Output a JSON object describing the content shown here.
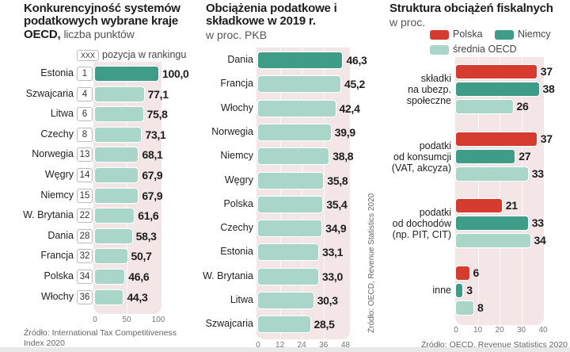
{
  "colors": {
    "teal_dark": "#3f9c86",
    "teal_light": "#a9d6c8",
    "red": "#d63b2f",
    "panel_bg": "#f4e6e6"
  },
  "chart_data": [
    {
      "type": "bar",
      "orientation": "horizontal",
      "title": "Konkurencyjność systemów podatkowych wybrane kraje OECD,",
      "subtitle": "liczba punktów",
      "legend_rank_box": "XXX",
      "legend_rank_label": "pozycja w rankingu",
      "categories": [
        "Estonia",
        "Szwajcaria",
        "Litwa",
        "Czechy",
        "Norwegia",
        "Węgry",
        "Niemcy",
        "W. Brytania",
        "Dania",
        "Francja",
        "Polska",
        "Włochy"
      ],
      "ranks": [
        "1",
        "4",
        "6",
        "8",
        "13",
        "14",
        "15",
        "22",
        "28",
        "32",
        "34",
        "36"
      ],
      "values": [
        100.0,
        77.1,
        75.8,
        73.1,
        68.1,
        67.9,
        67.9,
        61.6,
        58.3,
        50.7,
        46.6,
        44.3
      ],
      "value_labels": [
        "100,0",
        "77,1",
        "75,8",
        "73,1",
        "68,1",
        "67,9",
        "67,9",
        "61,6",
        "58,3",
        "50,7",
        "46,6",
        "44,3"
      ],
      "highlight_index": 0,
      "xlim": [
        0,
        100
      ],
      "xticks": [
        "0",
        "50",
        "100"
      ],
      "source": "Źródło: International Tax Competitiveness Index 2020"
    },
    {
      "type": "bar",
      "orientation": "horizontal",
      "title": "Obciążenia podatkowe i składkowe w 2019 r.",
      "subtitle": "w proc. PKB",
      "categories": [
        "Dania",
        "Francja",
        "Włochy",
        "Norwegia",
        "Niemcy",
        "Węgry",
        "Polska",
        "Czechy",
        "Estonia",
        "W. Brytania",
        "Litwa",
        "Szwajcaria"
      ],
      "values": [
        46.3,
        45.2,
        42.4,
        39.9,
        38.8,
        35.8,
        35.4,
        34.9,
        33.1,
        33.0,
        30.3,
        28.5
      ],
      "value_labels": [
        "46,3",
        "45,2",
        "42,4",
        "39,9",
        "38,8",
        "35,8",
        "35,4",
        "34,9",
        "33,1",
        "33,0",
        "30,3",
        "28,5"
      ],
      "highlight_index": 0,
      "xlim": [
        0,
        48
      ],
      "xticks": [
        "0",
        "12",
        "24",
        "36",
        "48"
      ],
      "source": "Źródło: OECD, Revenue Statistics 2020"
    },
    {
      "type": "bar",
      "orientation": "horizontal",
      "title": "Struktura obciążeń fiskalnych",
      "subtitle": "w proc.",
      "legend": [
        "Polska",
        "Niemcy",
        "średnia OECD"
      ],
      "categories": [
        [
          "składki",
          "na ubezp.",
          "społeczne"
        ],
        [
          "podatki",
          "od konsumcji",
          "(VAT, akcyza)"
        ],
        [
          "podatki",
          "od dochodów",
          "(np. PIT, CIT)"
        ],
        [
          "inne"
        ]
      ],
      "series": [
        {
          "name": "Polska",
          "values": [
            37,
            37,
            21,
            6
          ]
        },
        {
          "name": "Niemcy",
          "values": [
            38,
            27,
            33,
            3
          ]
        },
        {
          "name": "średnia OECD",
          "values": [
            26,
            33,
            34,
            8
          ]
        }
      ],
      "xlim": [
        0,
        40
      ],
      "xticks": [
        "0",
        "10",
        "20",
        "30",
        "40"
      ],
      "source": "Źródło: OECD, Revenue Statistics 2020"
    }
  ]
}
